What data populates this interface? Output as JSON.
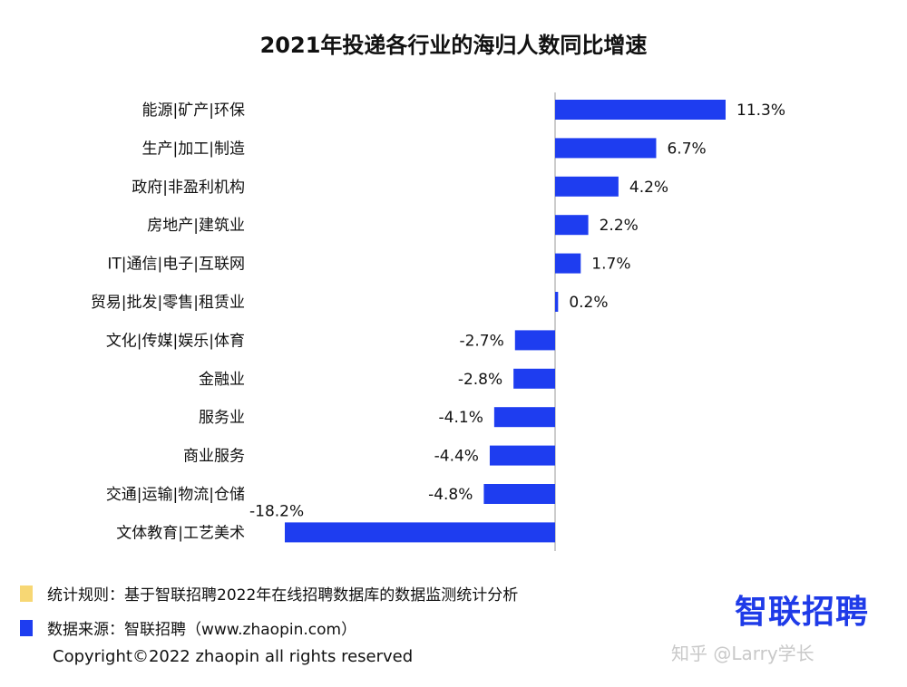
{
  "chart_data": {
    "type": "bar",
    "orientation": "horizontal",
    "title": "2021年投递各行业的海归人数同比增速",
    "categories": [
      "能源|矿产|环保",
      "生产|加工|制造",
      "政府|非盈利机构",
      "房地产|建筑业",
      "IT|通信|电子|互联网",
      "贸易|批发|零售|租赁业",
      "文化|传媒|娱乐|体育",
      "金融业",
      "服务业",
      "商业服务",
      "交通|运输|物流|仓储",
      "文体教育|工艺美术"
    ],
    "values": [
      11.3,
      6.7,
      4.2,
      2.2,
      1.7,
      0.2,
      -2.7,
      -2.8,
      -4.1,
      -4.4,
      -4.8,
      -18.2
    ],
    "value_labels": [
      "11.3%",
      "6.7%",
      "4.2%",
      "2.2%",
      "1.7%",
      "0.2%",
      "-2.7%",
      "-2.8%",
      "-4.1%",
      "-4.4%",
      "-4.8%",
      "-18.2%"
    ],
    "xlim": [
      -18.2,
      11.3
    ],
    "bar_color": "#1e3df0",
    "grid": false
  },
  "notes": {
    "rule": "统计规则：基于智联招聘2022年在线招聘数据库的数据监测统计分析",
    "rule_color": "#f7d774",
    "source": "数据来源：智联招聘（www.zhaopin.com）",
    "source_color": "#1e3df0"
  },
  "logo": "智联招聘",
  "logo_color": "#1f3be8",
  "copyright": "Copyright©2022 zhaopin all rights reserved",
  "watermark": "知乎 @Larry学长"
}
